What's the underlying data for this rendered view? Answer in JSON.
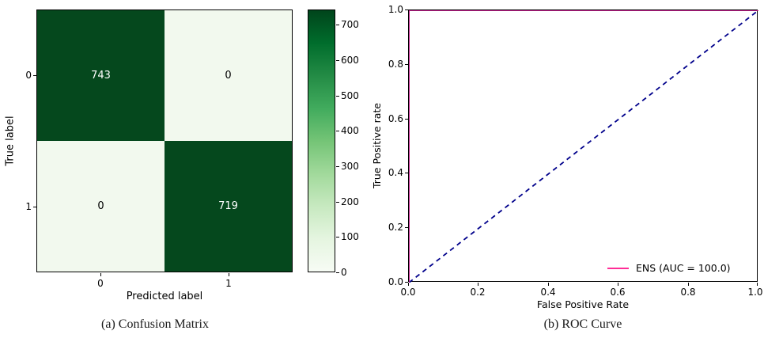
{
  "figure": {
    "captions": {
      "a": "(a) Confusion Matrix",
      "b": "(b) ROC Curve"
    }
  },
  "chart_data": [
    {
      "type": "heatmap",
      "name": "confusion_matrix",
      "xlabel": "Predicted label",
      "ylabel": "True label",
      "x_ticks": [
        "0",
        "1"
      ],
      "y_ticks": [
        "0",
        "1"
      ],
      "values": [
        [
          743,
          0
        ],
        [
          0,
          719
        ]
      ],
      "colormap": "Greens",
      "color_dark": "#05481d",
      "color_light": "#f2f9ee",
      "colorbar": {
        "min": 0,
        "max": 743,
        "ticks": [
          0,
          100,
          200,
          300,
          400,
          500,
          600,
          700
        ]
      }
    },
    {
      "type": "line",
      "name": "roc_curve",
      "xlabel": "False Positive Rate",
      "ylabel": "True Positive rate",
      "xlim": [
        0.0,
        1.0
      ],
      "ylim": [
        0.0,
        1.0
      ],
      "x_ticks": [
        "0.0",
        "0.2",
        "0.4",
        "0.6",
        "0.8",
        "1.0"
      ],
      "y_ticks": [
        "0.0",
        "0.2",
        "0.4",
        "0.6",
        "0.8",
        "1.0"
      ],
      "grid": false,
      "series": [
        {
          "name": "chance-diagonal",
          "style": "dashed",
          "color": "#00008b",
          "width": 1.8,
          "x": [
            0,
            1
          ],
          "y": [
            0,
            1
          ]
        },
        {
          "name": "ENS",
          "style": "solid",
          "color": "#c41e8e",
          "width": 2,
          "x": [
            0,
            0,
            1
          ],
          "y": [
            0,
            1,
            1
          ]
        }
      ],
      "legend": {
        "label": "ENS (AUC = 100.0)",
        "color": "#ff2d96",
        "position": "lower right"
      }
    }
  ]
}
